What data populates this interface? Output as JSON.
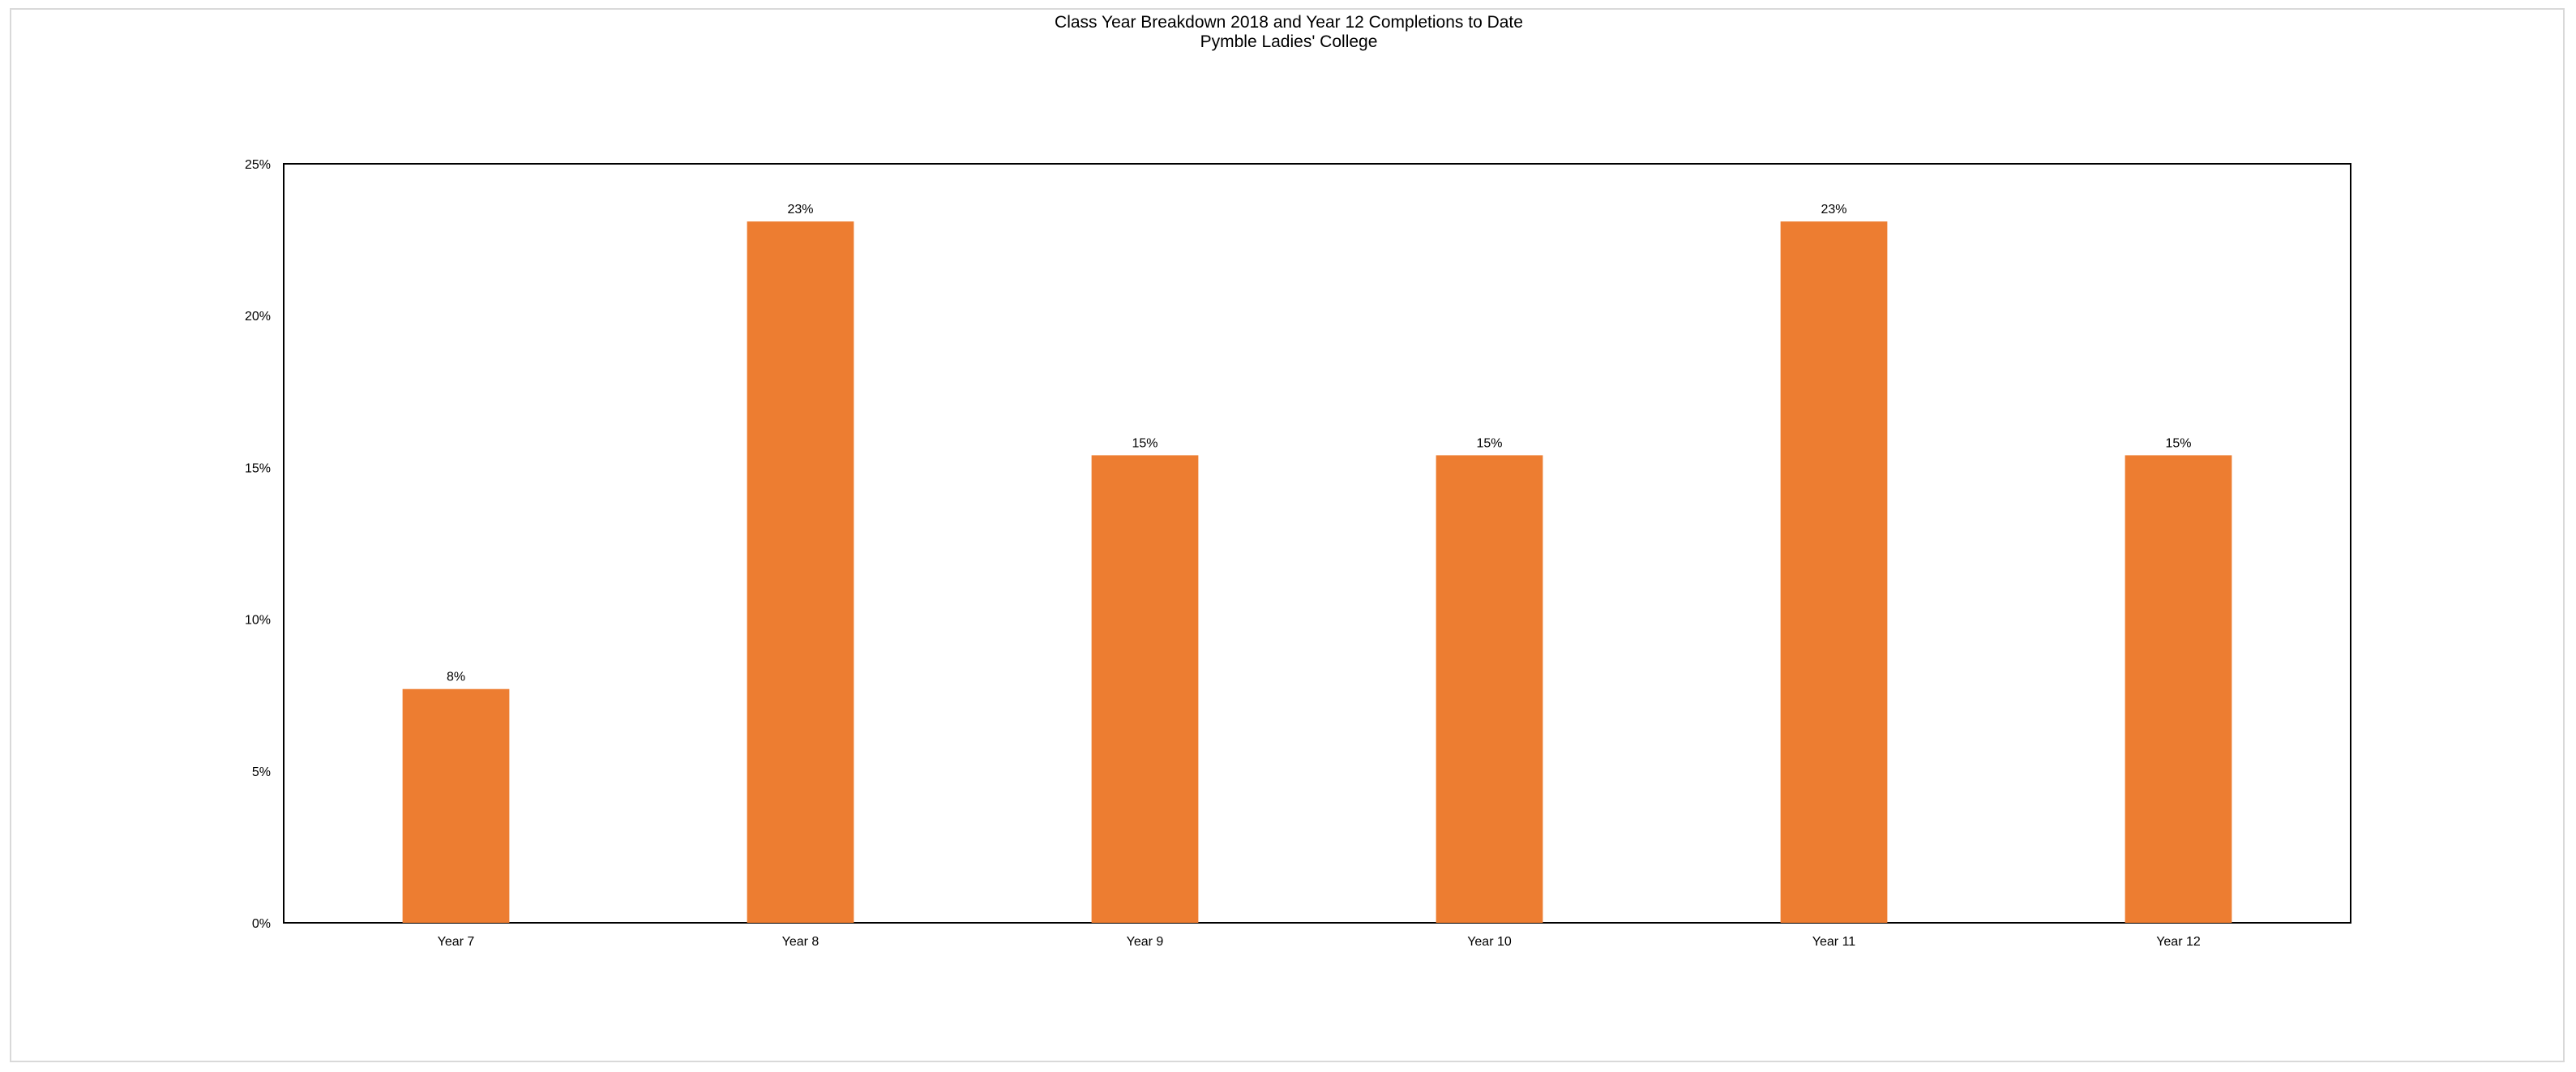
{
  "chart_data": {
    "type": "bar",
    "title": "Class Year Breakdown 2018 and Year 12 Completions to Date",
    "subtitle": "Pymble Ladies' College",
    "xlabel": "",
    "ylabel": "",
    "categories": [
      "Year 7",
      "Year 8",
      "Year 9",
      "Year 10",
      "Year 11",
      "Year 12"
    ],
    "values": [
      7.7,
      23.1,
      15.4,
      15.4,
      23.1,
      15.4
    ],
    "data_labels": [
      "8%",
      "23%",
      "15%",
      "15%",
      "23%",
      "15%"
    ],
    "ylim": [
      0,
      25
    ],
    "yticks": [
      0,
      5,
      10,
      15,
      20,
      25
    ],
    "ytick_labels": [
      "0%",
      "5%",
      "10%",
      "15%",
      "20%",
      "25%"
    ],
    "bar_color": "#ed7d31",
    "grid": false,
    "legend": "none"
  }
}
